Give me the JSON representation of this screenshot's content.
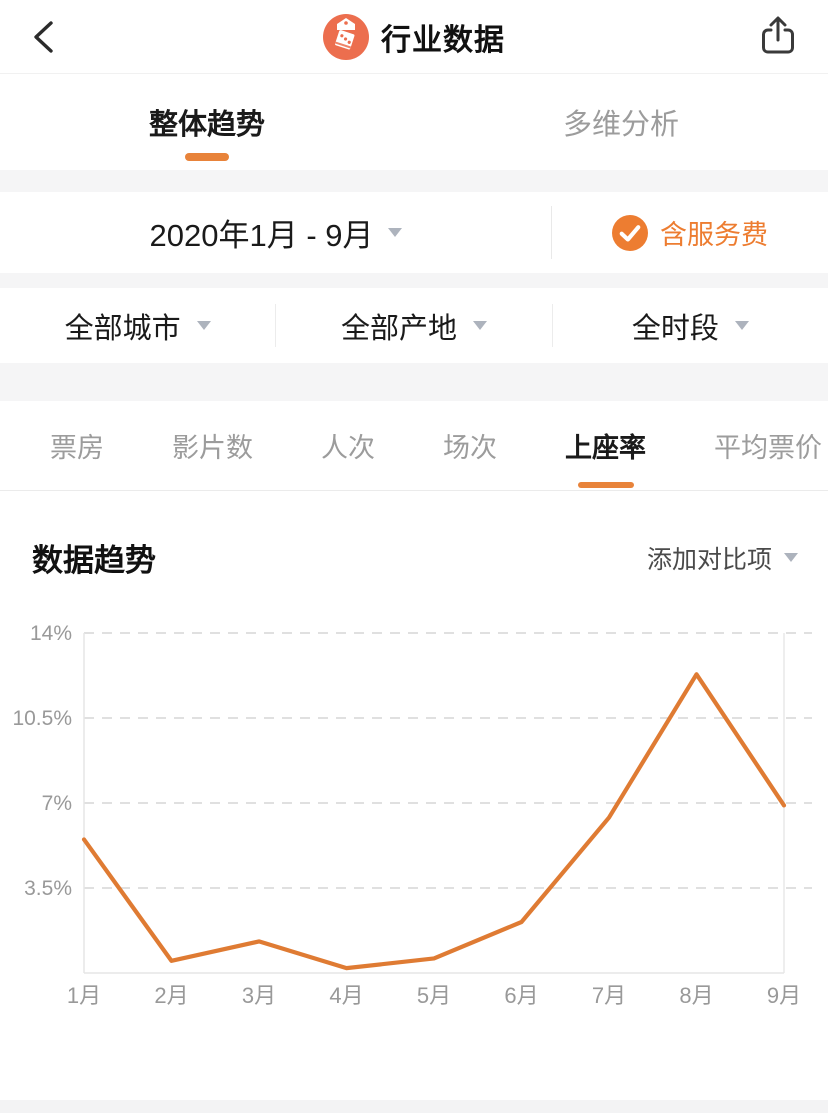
{
  "header": {
    "title": "行业数据"
  },
  "tabs": [
    {
      "label": "整体趋势",
      "active": true
    },
    {
      "label": "多维分析",
      "active": false
    }
  ],
  "date_filter": {
    "range_label": "2020年1月 - 9月",
    "service_fee_label": "含服务费",
    "service_fee_checked": true
  },
  "filters": [
    {
      "label": "全部城市"
    },
    {
      "label": "全部产地"
    },
    {
      "label": "全时段"
    }
  ],
  "metric_tabs": [
    {
      "label": "票房",
      "active": false
    },
    {
      "label": "影片数",
      "active": false
    },
    {
      "label": "人次",
      "active": false
    },
    {
      "label": "场次",
      "active": false
    },
    {
      "label": "上座率",
      "active": true
    },
    {
      "label": "平均票价",
      "active": false
    }
  ],
  "section": {
    "title": "数据趋势",
    "compare_label": "添加对比项"
  },
  "chart_data": {
    "type": "line",
    "title": "数据趋势 - 上座率",
    "x": [
      "1月",
      "2月",
      "3月",
      "4月",
      "5月",
      "6月",
      "7月",
      "8月",
      "9月"
    ],
    "series": [
      {
        "name": "上座率",
        "values": [
          5.5,
          0.5,
          1.3,
          0.2,
          0.6,
          2.1,
          6.4,
          12.3,
          6.9
        ]
      }
    ],
    "unit": "%",
    "ylim": [
      0,
      14
    ],
    "yticks": [
      3.5,
      7,
      10.5,
      14
    ],
    "ytick_labels": [
      "3.5%",
      "7%",
      "10.5%",
      "14%"
    ],
    "grid": "horizontal-dashed",
    "legend": "none",
    "line_color": "#df7b33"
  },
  "colors": {
    "accent": "#ed7d31",
    "tab_underline": "#e8833a",
    "app_icon_bg": "#ec6e4e",
    "muted_text": "#9c9c9c",
    "axis_text": "#999999",
    "gridline": "#d6d6d6"
  }
}
